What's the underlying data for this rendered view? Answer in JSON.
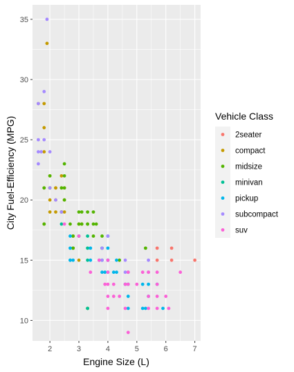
{
  "chart_data": {
    "type": "scatter",
    "title": "",
    "xlabel": "Engine Size (L)",
    "ylabel": "City Fuel-Efficiency (MPG)",
    "xlim": [
      1.4,
      7.2
    ],
    "ylim": [
      8.3,
      36.2
    ],
    "xticks": [
      2,
      3,
      4,
      5,
      6,
      7
    ],
    "yticks": [
      10,
      15,
      20,
      25,
      30,
      35
    ],
    "grid": true,
    "legend_position": "right",
    "legend_title": "Vehicle Class",
    "series": [
      {
        "name": "2seater",
        "color": "#F8766D",
        "points": [
          [
            5.7,
            16
          ],
          [
            5.7,
            15
          ],
          [
            6.2,
            16
          ],
          [
            6.2,
            15
          ],
          [
            7.0,
            15
          ]
        ]
      },
      {
        "name": "compact",
        "color": "#C49A00",
        "points": [
          [
            1.8,
            18
          ],
          [
            2.0,
            21
          ],
          [
            2.0,
            20
          ],
          [
            2.8,
            16
          ],
          [
            3.1,
            18
          ],
          [
            1.8,
            21
          ],
          [
            2.0,
            19
          ],
          [
            2.0,
            22
          ],
          [
            2.8,
            17
          ],
          [
            3.0,
            15
          ],
          [
            2.2,
            21
          ],
          [
            2.2,
            20
          ],
          [
            2.4,
            21
          ],
          [
            2.4,
            19
          ],
          [
            3.0,
            18
          ],
          [
            1.8,
            28
          ],
          [
            1.8,
            24
          ],
          [
            1.9,
            33
          ],
          [
            2.0,
            21
          ],
          [
            2.5,
            21
          ],
          [
            1.8,
            26
          ],
          [
            1.6,
            28
          ],
          [
            2.5,
            20
          ],
          [
            2.5,
            19
          ],
          [
            2.4,
            22
          ],
          [
            2.2,
            21
          ],
          [
            2.2,
            19
          ]
        ]
      },
      {
        "name": "midsize",
        "color": "#53B400",
        "points": [
          [
            1.8,
            18
          ],
          [
            2.0,
            21
          ],
          [
            2.8,
            16
          ],
          [
            3.1,
            18
          ],
          [
            2.4,
            19
          ],
          [
            3.0,
            17
          ],
          [
            3.3,
            18
          ],
          [
            3.8,
            17
          ],
          [
            2.5,
            21
          ],
          [
            2.5,
            20
          ],
          [
            3.5,
            18
          ],
          [
            2.4,
            21
          ],
          [
            2.5,
            23
          ],
          [
            3.0,
            18
          ],
          [
            3.3,
            19
          ],
          [
            5.3,
            16
          ],
          [
            2.7,
            18
          ],
          [
            3.0,
            19
          ],
          [
            3.6,
            18
          ],
          [
            2.5,
            22
          ],
          [
            3.5,
            17
          ],
          [
            2.0,
            22
          ],
          [
            1.8,
            21
          ],
          [
            3.3,
            18
          ],
          [
            4.4,
            15
          ],
          [
            2.8,
            17
          ],
          [
            3.1,
            19
          ],
          [
            3.5,
            19
          ],
          [
            3.8,
            16
          ],
          [
            3.3,
            11
          ]
        ]
      },
      {
        "name": "minivan",
        "color": "#00C094",
        "points": [
          [
            2.4,
            18
          ],
          [
            3.0,
            17
          ],
          [
            3.3,
            16
          ],
          [
            3.3,
            17
          ],
          [
            3.3,
            15
          ],
          [
            3.8,
            15
          ],
          [
            3.8,
            16
          ],
          [
            4.0,
            15
          ],
          [
            3.3,
            11
          ]
        ]
      },
      {
        "name": "pickup",
        "color": "#00B6EB",
        "points": [
          [
            2.7,
            15
          ],
          [
            2.7,
            16
          ],
          [
            2.7,
            17
          ],
          [
            3.4,
            15
          ],
          [
            4.7,
            13
          ],
          [
            4.7,
            12
          ],
          [
            4.7,
            14
          ],
          [
            5.2,
            11
          ],
          [
            5.2,
            13
          ],
          [
            5.7,
            13
          ],
          [
            5.9,
            11
          ],
          [
            4.2,
            14
          ],
          [
            4.6,
            13
          ],
          [
            5.4,
            13
          ],
          [
            5.4,
            12
          ],
          [
            3.7,
            15
          ],
          [
            3.9,
            14
          ],
          [
            4.0,
            14
          ],
          [
            4.3,
            14
          ],
          [
            4.3,
            15
          ],
          [
            4.7,
            11
          ],
          [
            5.3,
            11
          ],
          [
            4.0,
            16
          ],
          [
            4.0,
            15
          ],
          [
            4.0,
            17
          ],
          [
            3.8,
            14
          ],
          [
            3.4,
            16
          ],
          [
            2.8,
            15
          ],
          [
            2.7,
            15
          ]
        ]
      },
      {
        "name": "subcompact",
        "color": "#A58AFF",
        "points": [
          [
            1.6,
            28
          ],
          [
            1.6,
            24
          ],
          [
            1.6,
            25
          ],
          [
            1.6,
            23
          ],
          [
            1.7,
            24
          ],
          [
            1.8,
            25
          ],
          [
            1.8,
            29
          ],
          [
            1.9,
            35
          ],
          [
            2.0,
            24
          ],
          [
            2.0,
            21
          ],
          [
            2.2,
            20
          ],
          [
            2.4,
            19
          ],
          [
            3.8,
            15
          ],
          [
            3.8,
            16
          ],
          [
            4.0,
            15
          ],
          [
            4.6,
            15
          ],
          [
            5.4,
            14
          ],
          [
            4.0,
            17
          ],
          [
            4.6,
            14
          ],
          [
            5.4,
            15
          ]
        ]
      },
      {
        "name": "suv",
        "color": "#FB61D7",
        "points": [
          [
            5.7,
            13
          ],
          [
            5.7,
            14
          ],
          [
            6.5,
            14
          ],
          [
            4.0,
            14
          ],
          [
            4.0,
            13
          ],
          [
            4.6,
            13
          ],
          [
            5.0,
            13
          ],
          [
            4.2,
            12
          ],
          [
            4.4,
            12
          ],
          [
            4.6,
            11
          ],
          [
            5.4,
            11
          ],
          [
            5.4,
            12
          ],
          [
            4.0,
            11
          ],
          [
            4.7,
            9
          ],
          [
            5.7,
            11
          ],
          [
            6.1,
            11
          ],
          [
            3.9,
            13
          ],
          [
            4.7,
            13
          ],
          [
            4.7,
            14
          ],
          [
            5.2,
            14
          ],
          [
            5.7,
            12
          ],
          [
            6.0,
            12
          ],
          [
            5.4,
            14
          ],
          [
            3.4,
            14
          ],
          [
            4.2,
            13
          ],
          [
            4.0,
            12
          ],
          [
            3.0,
            17
          ],
          [
            2.5,
            18
          ],
          [
            4.0,
            15
          ],
          [
            3.7,
            15
          ]
        ]
      }
    ]
  }
}
